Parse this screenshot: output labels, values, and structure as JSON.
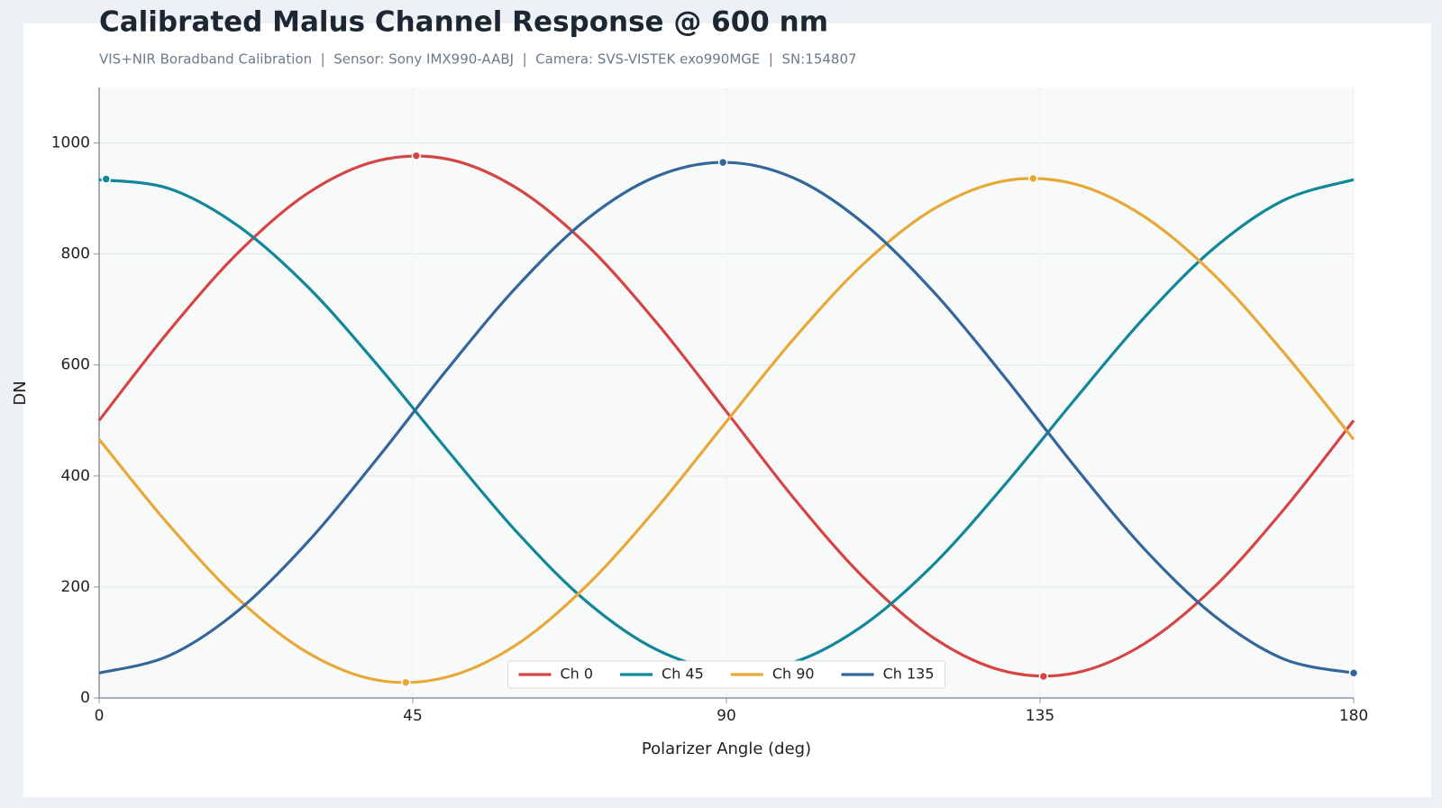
{
  "chart_data": {
    "type": "line",
    "title": "Calibrated Malus Channel Response @ 600 nm",
    "subtitle": "VIS+NIR Boradband Calibration  |  Sensor: Sony IMX990-AABJ  |  Camera: SVS-VISTEK exo990MGE  |  SN:154807",
    "x_label": "Polarizer Angle (deg)",
    "y_label": "DN",
    "x": [
      0,
      10,
      20,
      30,
      40,
      50,
      60,
      70,
      80,
      90,
      100,
      110,
      120,
      130,
      140,
      150,
      160,
      170,
      180
    ],
    "series": [
      {
        "name": "Ch 0",
        "color": "#d64545",
        "values": [
          500,
          661,
          803,
          910,
          968,
          971,
          918,
          816,
          676,
          516,
          355,
          213,
          106,
          48,
          45,
          98,
          200,
          340,
          500
        ],
        "markers": {
          "x": [
            45.5,
            135.5
          ],
          "values": [
            977,
            39
          ]
        }
      },
      {
        "name": "Ch 45",
        "color": "#12879a",
        "values": [
          934,
          918,
          850,
          740,
          599,
          446,
          298,
          173,
          87,
          50,
          66,
          134,
          244,
          385,
          538,
          686,
          811,
          897,
          934
        ],
        "markers": {
          "x": [
            1
          ],
          "values": [
            935
          ]
        }
      },
      {
        "name": "Ch 90",
        "color": "#e8a838",
        "values": [
          466,
          312,
          178,
          81,
          32,
          38,
          97,
          203,
          342,
          498,
          652,
          786,
          883,
          932,
          926,
          867,
          762,
          622,
          466
        ],
        "markers": {
          "x": [
            44,
            134
          ],
          "values": [
            28,
            936
          ]
        }
      },
      {
        "name": "Ch 135",
        "color": "#33669a",
        "values": [
          45,
          76,
          158,
          282,
          433,
          593,
          742,
          863,
          940,
          965,
          935,
          852,
          728,
          577,
          417,
          268,
          148,
          70,
          45
        ],
        "markers": {
          "x": [
            89.5,
            180
          ],
          "values": [
            965,
            45
          ]
        }
      }
    ],
    "xlim": [
      0,
      180
    ],
    "xticks": [
      0,
      45,
      90,
      135,
      180
    ],
    "ylim": [
      0,
      1100
    ],
    "yticks": [
      0,
      200,
      400,
      600,
      800,
      1000
    ],
    "grid": true,
    "legend": "lower center"
  }
}
